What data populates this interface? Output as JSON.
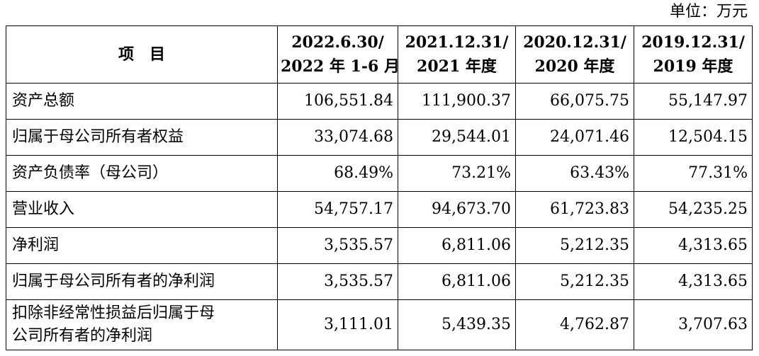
{
  "unit_label": "单位：万元",
  "header": {
    "item": "项　目",
    "periods": [
      {
        "line1": "2022.6.30/",
        "line2": "2022 年 1-6 月"
      },
      {
        "line1": "2021.12.31/",
        "line2": "2021 年度"
      },
      {
        "line1": "2020.12.31/",
        "line2": "2020 年度"
      },
      {
        "line1": "2019.12.31/",
        "line2": "2019 年度"
      }
    ]
  },
  "rows": [
    {
      "label": "资产总额",
      "values": [
        "106,551.84",
        "111,900.37",
        "66,075.75",
        "55,147.97"
      ]
    },
    {
      "label": "归属于母公司所有者权益",
      "values": [
        "33,074.68",
        "29,544.01",
        "24,071.46",
        "12,504.15"
      ]
    },
    {
      "label": "资产负债率（母公司）",
      "values": [
        "68.49%",
        "73.21%",
        "63.43%",
        "77.31%"
      ]
    },
    {
      "label": "营业收入",
      "values": [
        "54,757.17",
        "94,673.70",
        "61,723.83",
        "54,235.25"
      ]
    },
    {
      "label": "净利润",
      "values": [
        "3,535.57",
        "6,811.06",
        "5,212.35",
        "4,313.65"
      ]
    },
    {
      "label": "归属于母公司所有者的净利润",
      "values": [
        "3,535.57",
        "6,811.06",
        "5,212.35",
        "4,313.65"
      ]
    },
    {
      "label_line1": "扣除非经常性损益后归属于母",
      "label_line2": "公司所有者的净利润",
      "values": [
        "3,111.01",
        "5,439.35",
        "4,762.87",
        "3,707.63"
      ]
    }
  ]
}
